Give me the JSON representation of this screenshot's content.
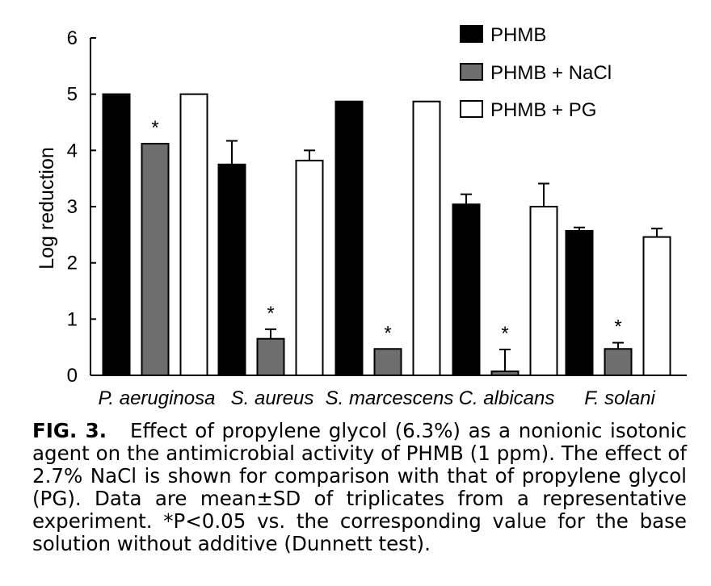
{
  "chart_data": {
    "type": "bar",
    "ylabel": "Log reduction",
    "ylim": [
      0,
      6
    ],
    "yticks": [
      "0",
      "1",
      "2",
      "3",
      "4",
      "5",
      "6"
    ],
    "categories": [
      "P. aeruginosa",
      "S. aureus",
      "S. marcescens",
      "C. albicans",
      "F. solani"
    ],
    "legend_position": "top-right",
    "series": [
      {
        "name": "PHMB",
        "color": "#000000",
        "values": [
          5.0,
          3.75,
          4.87,
          3.04,
          2.57
        ],
        "sd": [
          0.0,
          0.42,
          0.0,
          0.18,
          0.06
        ],
        "marks": [
          "",
          "",
          "",
          "",
          ""
        ]
      },
      {
        "name": "PHMB + NaCl",
        "color": "#6e6e6e",
        "values": [
          4.12,
          0.65,
          0.47,
          0.07,
          0.47
        ],
        "sd": [
          0.0,
          0.17,
          0.0,
          0.39,
          0.11
        ],
        "marks": [
          "*",
          "*",
          "*",
          "*",
          "*"
        ]
      },
      {
        "name": "PHMB + PG",
        "color": "#ffffff",
        "values": [
          5.0,
          3.82,
          4.87,
          3.0,
          2.46
        ],
        "sd": [
          0.0,
          0.18,
          0.0,
          0.41,
          0.15
        ],
        "marks": [
          "",
          "",
          "",
          "",
          ""
        ]
      }
    ]
  },
  "caption": {
    "label": "FIG. 3.",
    "text": "Effect of propylene glycol (6.3%) as a nonionic isotonic agent on the antimicrobial activity of PHMB (1 ppm). The effect of 2.7% NaCl is shown for comparison with that of propylene glycol (PG). Data are mean±SD of triplicates from a representative experiment. *P<0.05 vs. the corresponding value for the base solution without additive (Dunnett test)."
  }
}
